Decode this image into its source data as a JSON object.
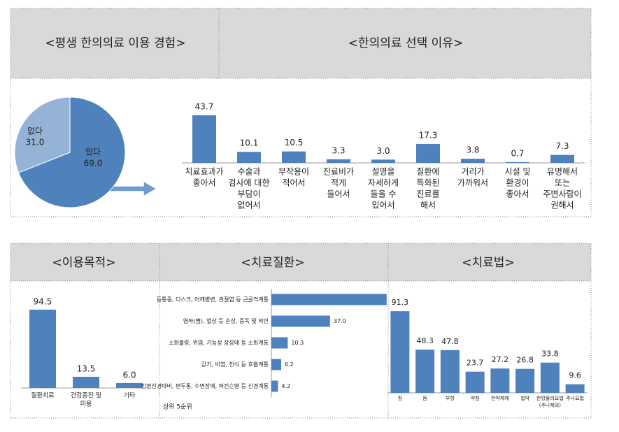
{
  "panels": {
    "top": [
      "<평생 한의의료 이용 경험>",
      "<한의의료 선택 이유>"
    ],
    "bottom": [
      "<이용목적>",
      "<치료질환>",
      "<치료법>"
    ]
  },
  "chart_data": [
    {
      "type": "pie",
      "categories": [
        "있다",
        "없다"
      ],
      "values": [
        69.0,
        31.0
      ],
      "value_labels": [
        "69.0",
        "31.0"
      ],
      "colors": [
        "#4f81bd",
        "#95b3d7"
      ]
    },
    {
      "type": "bar",
      "categories": [
        [
          "치료효과가",
          "좋아서"
        ],
        [
          "수술과",
          "검사에 대한",
          "부담이",
          "없어서"
        ],
        [
          "부작용이",
          "적어서"
        ],
        [
          "진료비가",
          "적게",
          "들어서"
        ],
        [
          "설명을",
          "자세하게",
          "들을 수",
          "있어서"
        ],
        [
          "질환에",
          "특화된",
          "진료를",
          "해서"
        ],
        [
          "거리가",
          "가까워서"
        ],
        [
          "시설 및",
          "환경이",
          "좋아서"
        ],
        [
          "유명해서",
          "또는",
          "주변사람이",
          "권해서"
        ]
      ],
      "values": [
        43.7,
        10.1,
        10.5,
        3.3,
        3.0,
        17.3,
        3.8,
        0.7,
        7.3
      ],
      "value_labels": [
        "43.7",
        "10.1",
        "10.5",
        "3.3",
        "3.0",
        "17.3",
        "3.8",
        "0.7",
        "7.3"
      ],
      "color": "#4f81bd",
      "ylim": [
        0,
        50
      ]
    },
    {
      "type": "bar",
      "categories": [
        [
          "질환치료"
        ],
        [
          "건강증진 및",
          "미용"
        ],
        [
          "기타"
        ]
      ],
      "values": [
        94.5,
        13.5,
        6.0
      ],
      "value_labels": [
        "94.5",
        "13.5",
        "6.0"
      ],
      "color": "#4f81bd",
      "ylim": [
        0,
        100
      ]
    },
    {
      "type": "bar",
      "orientation": "horizontal",
      "categories": [
        [
          "등통증, 디스크, 어깨병변, 관절염 등 근골격계통"
        ],
        [
          "염좌(삠), 열상 등 손상, 중독 및 외인"
        ],
        [
          "소화불량, 위염, 기능성 장장애 등 소화계통"
        ],
        [
          "감기, 비염, 천식 등 호흡계통"
        ],
        [
          "안면신경마비, 편두통, 수면장애, 파킨슨병 등 신경계통"
        ]
      ],
      "values": [
        72.7,
        37.0,
        10.3,
        6.2,
        4.2
      ],
      "value_labels": [
        null,
        "37.0",
        "10.3",
        "6.2",
        "4.2"
      ],
      "color": "#4f81bd",
      "xlim": [
        0,
        75
      ],
      "note": "상위 5순위"
    },
    {
      "type": "bar",
      "categories": [
        [
          "침"
        ],
        [
          "뜸"
        ],
        [
          "부항"
        ],
        [
          "약침"
        ],
        [
          "한약제제"
        ],
        [
          "첩약"
        ],
        [
          "한방물리요법",
          "(추나제외)"
        ],
        [
          "추나요법"
        ]
      ],
      "values": [
        91.3,
        48.3,
        47.8,
        23.7,
        27.2,
        26.8,
        33.8,
        9.6
      ],
      "value_labels": [
        "91.3",
        "48.3",
        "47.8",
        "23.7",
        "27.2",
        "26.8",
        "33.8",
        "9.6"
      ],
      "color": "#4f81bd",
      "ylim": [
        0,
        100
      ]
    }
  ]
}
